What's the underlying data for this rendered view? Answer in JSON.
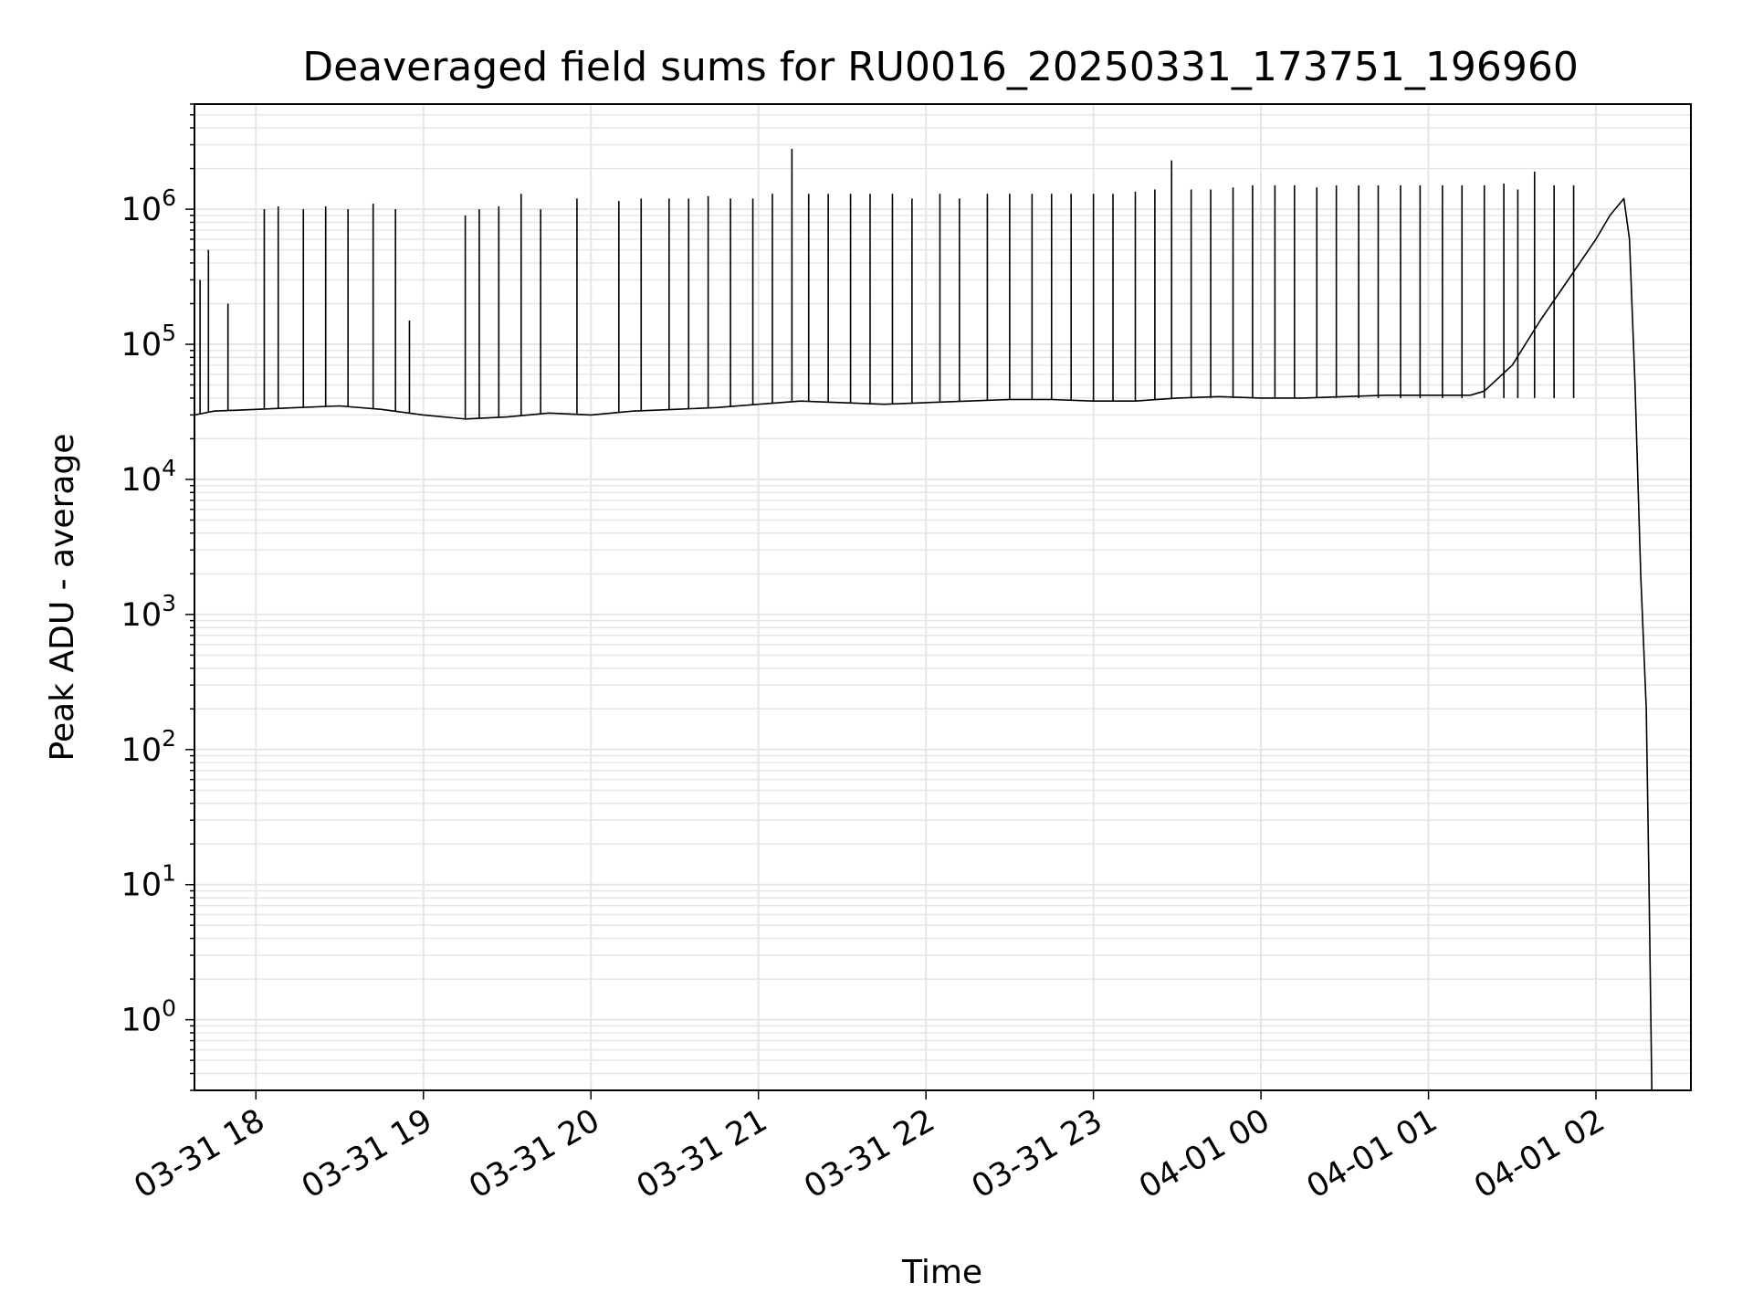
{
  "chart_data": {
    "type": "line",
    "title": "Deaveraged field sums for RU0016_20250331_173751_196960",
    "xlabel": "Time",
    "ylabel": "Peak ADU - average",
    "yscale": "log",
    "ylim": [
      0.3,
      6000000
    ],
    "xlim": [
      "2025-03-31 17:38",
      "2025-04-01 02:34"
    ],
    "grid": true,
    "legend": "none",
    "line_color": "#000000",
    "grid_color": "#e6e6e6",
    "x_ticks": [
      {
        "value": "2025-03-31 18:00",
        "label": "03-31 18"
      },
      {
        "value": "2025-03-31 19:00",
        "label": "03-31 19"
      },
      {
        "value": "2025-03-31 20:00",
        "label": "03-31 20"
      },
      {
        "value": "2025-03-31 21:00",
        "label": "03-31 21"
      },
      {
        "value": "2025-03-31 22:00",
        "label": "03-31 22"
      },
      {
        "value": "2025-03-31 23:00",
        "label": "03-31 23"
      },
      {
        "value": "2025-04-01 00:00",
        "label": "04-01 00"
      },
      {
        "value": "2025-04-01 01:00",
        "label": "04-01 01"
      },
      {
        "value": "2025-04-01 02:00",
        "label": "04-01 02"
      }
    ],
    "y_ticks": [
      {
        "value": 1,
        "base": "10",
        "exp": "0"
      },
      {
        "value": 10,
        "base": "10",
        "exp": "1"
      },
      {
        "value": 100,
        "base": "10",
        "exp": "2"
      },
      {
        "value": 1000,
        "base": "10",
        "exp": "3"
      },
      {
        "value": 10000,
        "base": "10",
        "exp": "4"
      },
      {
        "value": 100000,
        "base": "10",
        "exp": "5"
      },
      {
        "value": 1000000,
        "base": "10",
        "exp": "6"
      }
    ],
    "series": [
      {
        "x": [
          "2025-03-31 17:38",
          "2025-03-31 17:45",
          "2025-03-31 18:00",
          "2025-03-31 18:15",
          "2025-03-31 18:30",
          "2025-03-31 18:45",
          "2025-03-31 19:00",
          "2025-03-31 19:15",
          "2025-03-31 19:30",
          "2025-03-31 19:45",
          "2025-03-31 20:00",
          "2025-03-31 20:15",
          "2025-03-31 20:30",
          "2025-03-31 20:45",
          "2025-03-31 21:00",
          "2025-03-31 21:15",
          "2025-03-31 21:30",
          "2025-03-31 21:45",
          "2025-03-31 22:00",
          "2025-03-31 22:15",
          "2025-03-31 22:30",
          "2025-03-31 22:45",
          "2025-03-31 23:00",
          "2025-03-31 23:15",
          "2025-03-31 23:30",
          "2025-03-31 23:45",
          "2025-04-01 00:00",
          "2025-04-01 00:15",
          "2025-04-01 00:30",
          "2025-04-01 00:45",
          "2025-04-01 01:00",
          "2025-04-01 01:15",
          "2025-04-01 01:20",
          "2025-04-01 01:30",
          "2025-04-01 01:40",
          "2025-04-01 01:50",
          "2025-04-01 02:00",
          "2025-04-01 02:05",
          "2025-04-01 02:10",
          "2025-04-01 02:12",
          "2025-04-01 02:14",
          "2025-04-01 02:16",
          "2025-04-01 02:18",
          "2025-04-01 02:19",
          "2025-04-01 02:20"
        ],
        "y": [
          30000,
          32000,
          33000,
          34000,
          35000,
          33000,
          30000,
          28000,
          29000,
          31000,
          30000,
          32000,
          33000,
          34000,
          36000,
          38000,
          37000,
          36000,
          37000,
          38000,
          39000,
          39000,
          38000,
          38000,
          40000,
          41000,
          40000,
          40000,
          41000,
          42000,
          42000,
          42000,
          45000,
          70000,
          150000,
          300000,
          600000,
          900000,
          1200000,
          600000,
          50000,
          2000,
          200,
          10,
          0.3
        ]
      }
    ],
    "spikes": {
      "x": [
        "2025-03-31 17:40",
        "2025-03-31 17:43",
        "2025-03-31 17:50",
        "2025-03-31 18:03",
        "2025-03-31 18:08",
        "2025-03-31 18:17",
        "2025-03-31 18:25",
        "2025-03-31 18:33",
        "2025-03-31 18:42",
        "2025-03-31 18:50",
        "2025-03-31 18:55",
        "2025-03-31 19:15",
        "2025-03-31 19:20",
        "2025-03-31 19:27",
        "2025-03-31 19:35",
        "2025-03-31 19:42",
        "2025-03-31 19:55",
        "2025-03-31 20:10",
        "2025-03-31 20:18",
        "2025-03-31 20:28",
        "2025-03-31 20:35",
        "2025-03-31 20:42",
        "2025-03-31 20:50",
        "2025-03-31 20:58",
        "2025-03-31 21:05",
        "2025-03-31 21:12",
        "2025-03-31 21:18",
        "2025-03-31 21:25",
        "2025-03-31 21:33",
        "2025-03-31 21:40",
        "2025-03-31 21:48",
        "2025-03-31 21:55",
        "2025-03-31 22:05",
        "2025-03-31 22:12",
        "2025-03-31 22:22",
        "2025-03-31 22:30",
        "2025-03-31 22:38",
        "2025-03-31 22:45",
        "2025-03-31 22:52",
        "2025-03-31 23:00",
        "2025-03-31 23:07",
        "2025-03-31 23:15",
        "2025-03-31 23:22",
        "2025-03-31 23:28",
        "2025-03-31 23:35",
        "2025-03-31 23:42",
        "2025-03-31 23:50",
        "2025-03-31 23:57",
        "2025-04-01 00:05",
        "2025-04-01 00:12",
        "2025-04-01 00:20",
        "2025-04-01 00:27",
        "2025-04-01 00:35",
        "2025-04-01 00:42",
        "2025-04-01 00:50",
        "2025-04-01 00:57",
        "2025-04-01 01:05",
        "2025-04-01 01:12",
        "2025-04-01 01:20",
        "2025-04-01 01:27",
        "2025-04-01 01:32",
        "2025-04-01 01:38",
        "2025-04-01 01:45",
        "2025-04-01 01:52"
      ],
      "y": [
        300000,
        500000,
        200000,
        1000000,
        1050000,
        1000000,
        1050000,
        1000000,
        1100000,
        1000000,
        150000,
        900000,
        1000000,
        1050000,
        1300000,
        1000000,
        1200000,
        1150000,
        1200000,
        1200000,
        1200000,
        1250000,
        1200000,
        1200000,
        1300000,
        2800000,
        1300000,
        1300000,
        1300000,
        1300000,
        1300000,
        1200000,
        1300000,
        1200000,
        1300000,
        1300000,
        1300000,
        1300000,
        1300000,
        1300000,
        1300000,
        1350000,
        1400000,
        2300000,
        1400000,
        1400000,
        1450000,
        1500000,
        1500000,
        1500000,
        1450000,
        1500000,
        1500000,
        1500000,
        1500000,
        1500000,
        1500000,
        1500000,
        1500000,
        1550000,
        1400000,
        1900000,
        1500000,
        1500000
      ]
    }
  }
}
